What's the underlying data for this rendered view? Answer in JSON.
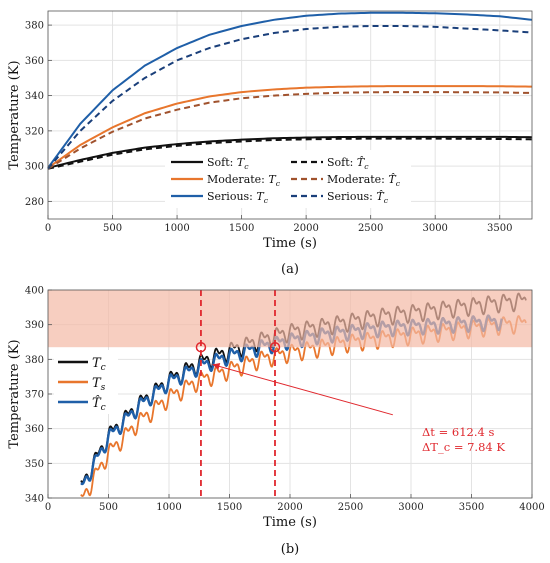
{
  "chart_data": [
    {
      "type": "line",
      "caption": "(a)",
      "xlabel": "Time (s)",
      "ylabel": "Temperature (K)",
      "xlim": [
        0,
        3750
      ],
      "ylim": [
        270,
        388
      ],
      "xticks": [
        "0",
        "500",
        "1000",
        "1500",
        "2000",
        "2500",
        "3000",
        "3500"
      ],
      "yticks": [
        "280",
        "300",
        "320",
        "340",
        "360",
        "380"
      ],
      "grid": true,
      "legend_position": "bottom-center",
      "x": [
        0,
        250,
        500,
        750,
        1000,
        1250,
        1500,
        1750,
        2000,
        2250,
        2500,
        2750,
        3000,
        3250,
        3500,
        3750
      ],
      "series": [
        {
          "name": "Soft: T_c",
          "legend_label": "Soft: ",
          "sym": "T",
          "hat": false,
          "color": "#111111",
          "dash": false,
          "values": [
            299,
            303.5,
            307.5,
            310.5,
            312.5,
            314,
            315,
            315.8,
            316.2,
            316.5,
            316.6,
            316.6,
            316.6,
            316.6,
            316.6,
            316.4
          ]
        },
        {
          "name": "Moderate: T_c",
          "legend_label": "Moderate: ",
          "sym": "T",
          "hat": false,
          "color": "#e8762d",
          "dash": false,
          "values": [
            299,
            312,
            322,
            330,
            335.5,
            339.5,
            342,
            343.5,
            344.5,
            345,
            345.3,
            345.4,
            345.4,
            345.4,
            345.3,
            345.1
          ]
        },
        {
          "name": "Serious: T_c",
          "legend_label": "Serious: ",
          "sym": "T",
          "hat": false,
          "color": "#1f5fa8",
          "dash": false,
          "values": [
            299,
            324,
            343,
            357,
            367,
            374.5,
            379.5,
            383,
            385.3,
            386.5,
            387,
            387,
            386.7,
            386,
            385,
            383
          ]
        },
        {
          "name": "Soft: T̂_c",
          "legend_label": "Soft: ",
          "sym": "T",
          "hat": true,
          "color": "#111111",
          "dash": true,
          "values": [
            298.5,
            302.5,
            306.5,
            309.5,
            311.5,
            313,
            314,
            314.8,
            315.2,
            315.5,
            315.6,
            315.6,
            315.6,
            315.5,
            315.4,
            315.2
          ]
        },
        {
          "name": "Moderate: T̂_c",
          "legend_label": "Moderate: ",
          "sym": "T",
          "hat": true,
          "color": "#a0522d",
          "dash": true,
          "values": [
            298.5,
            310,
            319.5,
            327,
            332,
            336,
            338.5,
            340,
            341,
            341.6,
            341.9,
            342,
            342,
            341.9,
            341.8,
            341.5
          ]
        },
        {
          "name": "Serious: T̂_c",
          "legend_label": "Serious: ",
          "sym": "T",
          "hat": true,
          "color": "#1a3f7a",
          "dash": true,
          "values": [
            298.5,
            320,
            337,
            350,
            360,
            367,
            372,
            375.5,
            377.8,
            379,
            379.5,
            379.5,
            379,
            378,
            377,
            375.8
          ]
        }
      ]
    },
    {
      "type": "line",
      "caption": "(b)",
      "xlabel": "Time (s)",
      "ylabel": "Temperature (K)",
      "xlim": [
        0,
        4000
      ],
      "ylim": [
        340,
        400
      ],
      "xticks": [
        "0",
        "500",
        "1000",
        "1500",
        "2000",
        "2500",
        "3000",
        "3500",
        "4000"
      ],
      "yticks": [
        "340",
        "350",
        "360",
        "370",
        "380",
        "390",
        "400"
      ],
      "grid": true,
      "legend_position": "middle-left",
      "shaded_band": {
        "from": 383.5,
        "to": 400,
        "color": "#f4b9a5"
      },
      "vlines": [
        1264,
        1876
      ],
      "markers": [
        {
          "x": 1264,
          "y": 383.5
        },
        {
          "x": 1876,
          "y": 383.5
        }
      ],
      "annotation": {
        "line1": "Δt = 612.4 s",
        "line2": "ΔT_c = 7.84 K",
        "arrow_from": [
          2850,
          364
        ],
        "arrow_to": [
          1360,
          378.5
        ]
      },
      "oscillation_period_s": 125,
      "series": [
        {
          "name": "T_c",
          "sym": "T",
          "sub": "c",
          "hat": false,
          "color": "#111111",
          "x": [
            270,
            500,
            750,
            1000,
            1250,
            1500,
            1750,
            2000,
            2250,
            2500,
            2750,
            3000,
            3250,
            3500,
            3750,
            3950
          ],
          "values": [
            343,
            358,
            367,
            374,
            379,
            382.5,
            385.5,
            388,
            389.5,
            391,
            392.5,
            393.5,
            394.5,
            395.5,
            396.5,
            397
          ],
          "amp": 3
        },
        {
          "name": "T_s",
          "sym": "T",
          "sub": "s",
          "hat": false,
          "color": "#e8762d",
          "x": [
            270,
            500,
            750,
            1000,
            1250,
            1500,
            1750,
            2000,
            2250,
            2500,
            2750,
            3000,
            3250,
            3500,
            3750,
            3950
          ],
          "values": [
            339,
            353,
            362,
            369,
            374,
            377,
            380,
            382,
            383.5,
            385,
            386,
            387,
            388,
            389,
            390,
            390.5
          ],
          "amp": 3
        },
        {
          "name": "T̂_c",
          "sym": "T",
          "sub": "c",
          "hat": true,
          "color": "#1f5fa8",
          "x": [
            270,
            500,
            750,
            1000,
            1250,
            1500,
            1750,
            2000,
            2250,
            2500,
            2750,
            3000,
            3250,
            3500,
            3750
          ],
          "values": [
            342.5,
            357.5,
            366.5,
            373.5,
            378,
            381,
            383.5,
            385.5,
            387,
            388,
            389,
            389.5,
            390,
            390.5,
            391
          ],
          "amp": 2.6
        }
      ]
    }
  ]
}
